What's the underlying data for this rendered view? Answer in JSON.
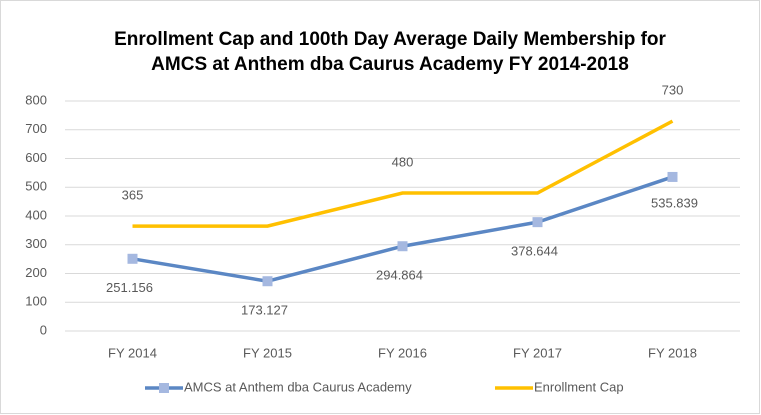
{
  "chart_data": {
    "type": "line",
    "title": [
      "Enrollment Cap and 100th Day Average Daily Membership for",
      "AMCS at Anthem dba Caurus Academy FY 2014-2018"
    ],
    "categories": [
      "FY 2014",
      "FY 2015",
      "FY 2016",
      "FY 2017",
      "FY 2018"
    ],
    "series": [
      {
        "name": "AMCS at Anthem dba Caurus Academy",
        "color": "#5b87c4",
        "values": [
          251.156,
          173.127,
          294.864,
          378.644,
          535.839
        ]
      },
      {
        "name": "Enrollment Cap",
        "color": "#ffc000",
        "values": [
          365,
          365,
          480,
          480,
          730
        ],
        "value_labels": [
          "365",
          null,
          "480",
          null,
          "730"
        ]
      }
    ],
    "ylim": [
      0,
      800
    ],
    "yticks": [
      0,
      100,
      200,
      300,
      400,
      500,
      600,
      700,
      800
    ],
    "grid": true,
    "legend": "bottom"
  }
}
